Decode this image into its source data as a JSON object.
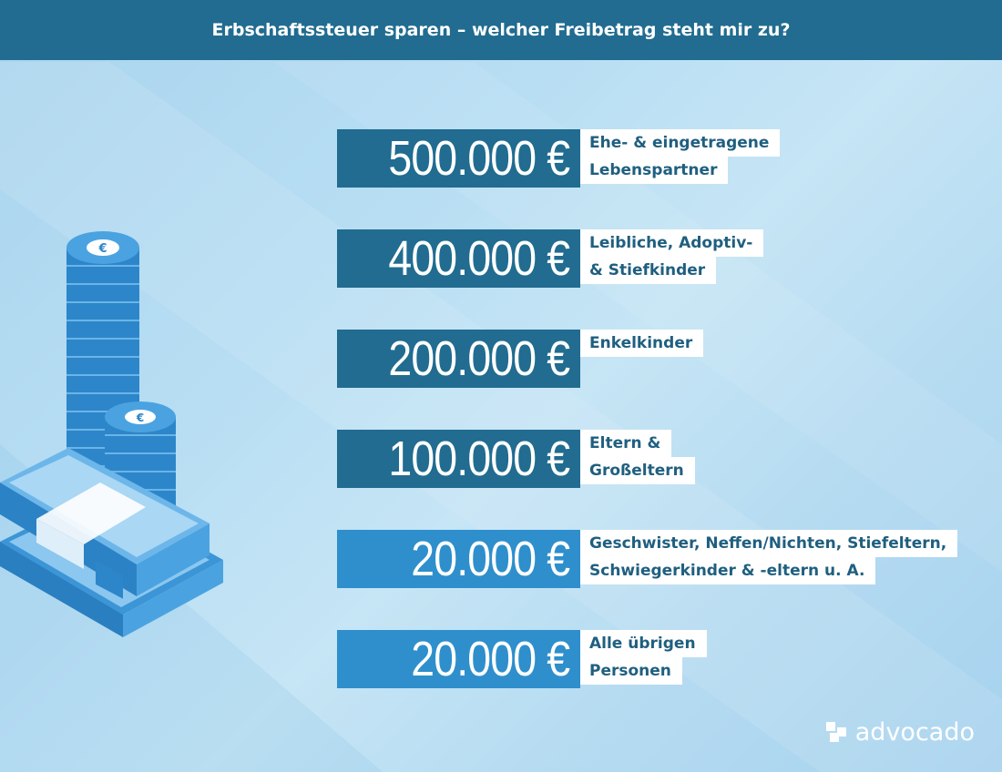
{
  "header": {
    "title": "Erbschaftssteuer sparen – welcher Freibetrag steht mir zu?"
  },
  "colors": {
    "header_bg": "#216c90",
    "amount_dark": "#216c90",
    "amount_light": "#2e8fcc",
    "label_text": "#1f5f80"
  },
  "rows": [
    {
      "amount": "500.000 €",
      "lines": [
        "Ehe- & eingetragene",
        "Lebenspartner"
      ]
    },
    {
      "amount": "400.000 €",
      "lines": [
        "Leibliche, Adoptiv-",
        "& Stiefkinder"
      ]
    },
    {
      "amount": "200.000 €",
      "lines": [
        "Enkelkinder"
      ]
    },
    {
      "amount": "100.000 €",
      "lines": [
        "Eltern &",
        "Großeltern"
      ]
    },
    {
      "amount": "20.000 €",
      "lines": [
        "Geschwister, Neffen/Nichten, Stiefeltern,",
        "Schwiegerkinder & -eltern u. A."
      ]
    },
    {
      "amount": "20.000 €",
      "lines": [
        "Alle übrigen",
        "Personen"
      ]
    }
  ],
  "logo": {
    "text": "advocado"
  },
  "illustration": {
    "icons": [
      "euro-coin-stack-icon",
      "euro-coin-stack-icon",
      "banknote-bundle-icon"
    ]
  }
}
